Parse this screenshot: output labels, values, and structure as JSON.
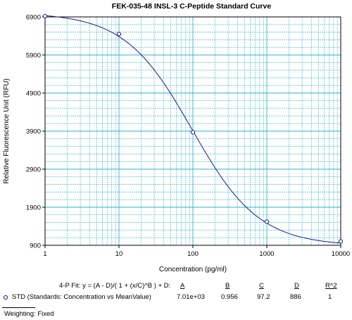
{
  "chart_data": {
    "type": "scatter",
    "title": "FEK-035-48 INSL-3 C-Peptide Standard Curve",
    "xlabel": "Concentration (pg/ml)",
    "ylabel": "Relative Fluorescence Unit (RFU)",
    "x_scale": "log",
    "xlim": [
      1,
      10000
    ],
    "ylim": [
      900,
      6900
    ],
    "x_ticks": [
      "1",
      "10",
      "100",
      "1000",
      "10000"
    ],
    "y_ticks": [
      "900",
      "1900",
      "2900",
      "3900",
      "4900",
      "5900",
      "6900"
    ],
    "grid": true,
    "points": [
      {
        "x": 1,
        "y": 6920
      },
      {
        "x": 10,
        "y": 6450
      },
      {
        "x": 100,
        "y": 3870
      },
      {
        "x": 1000,
        "y": 1520
      },
      {
        "x": 10000,
        "y": 1000
      }
    ],
    "fit": {
      "A": 7010,
      "B": 0.956,
      "C": 97.2,
      "D": 886
    },
    "colors": {
      "grid": "#2bb5c8",
      "curve": "#1a1a8c",
      "points": "#1a1a8c",
      "axis": "#000000"
    }
  },
  "fit_table": {
    "formula": "4-P Fit: y = (A - D)/( 1 + (x/C)^B ) + D:",
    "headers": [
      "A",
      "B",
      "C",
      "D",
      "R^2"
    ],
    "series_label": "STD (Standards: Concentration vs MeanValue)",
    "values": [
      "7.01e+03",
      "0.956",
      "97.2",
      "886",
      "1"
    ],
    "marker_icon": "circle-marker-icon"
  },
  "weighting": "Weighting: Fixed"
}
